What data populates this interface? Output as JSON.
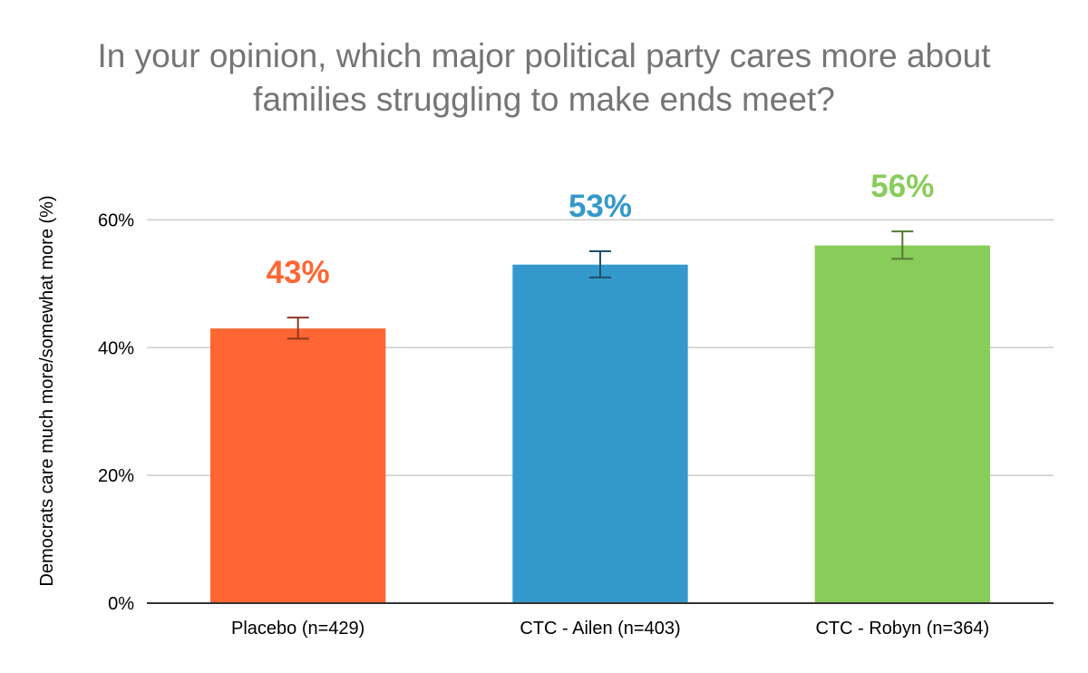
{
  "chart_data": {
    "type": "bar",
    "title_line1": "In your opinion, which major political party cares more about",
    "title_line2": "families struggling to make ends meet?",
    "xlabel": "",
    "ylabel": "Democrats care much more/somewhat more (%)",
    "categories": [
      "Placebo (n=429)",
      "CTC - Ailen (n=403)",
      "CTC - Robyn (n=364)"
    ],
    "values": [
      43,
      53,
      56
    ],
    "data_labels": [
      "43%",
      "53%",
      "56%"
    ],
    "error_low": [
      41.4,
      51.0,
      53.9
    ],
    "error_high": [
      44.7,
      55.1,
      58.2
    ],
    "colors": [
      "#ff6633",
      "#3399cc",
      "#88cc5a"
    ],
    "error_colors": [
      "#8a3a1c",
      "#1f4f68",
      "#557a35"
    ],
    "ylim": [
      0,
      70
    ],
    "yticks": [
      0,
      20,
      40,
      60
    ],
    "ytick_labels": [
      "0%",
      "20%",
      "40%",
      "60%"
    ],
    "grid": true,
    "legend": "none"
  }
}
